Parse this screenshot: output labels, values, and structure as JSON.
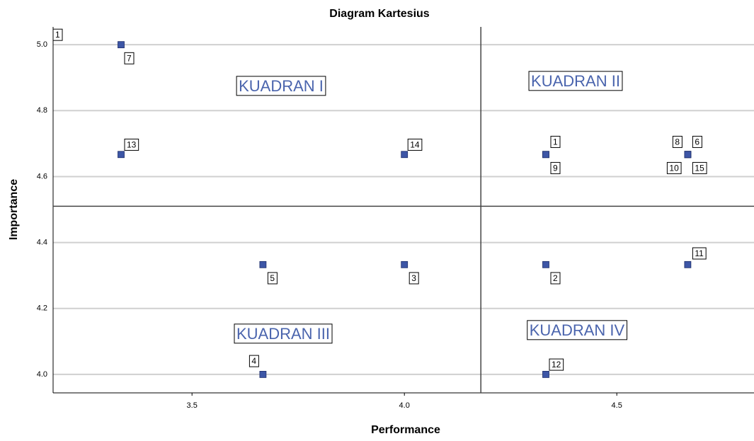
{
  "chart_data": {
    "type": "scatter",
    "title": "Diagram Kartesius",
    "x_label": "Performance",
    "y_label": "Importance",
    "xlim": [
      3.173,
      4.823
    ],
    "ylim": [
      3.944,
      5.054
    ],
    "xticks": [
      3.5,
      {
        "value": 4,
        "label": "4.0"
      },
      4.5
    ],
    "yticks": [
      {
        "value": 4,
        "label": "4.0"
      },
      4.2,
      4.4,
      4.6,
      4.8,
      {
        "value": 5,
        "label": "5.0"
      }
    ],
    "grid": true,
    "x_reference": 4.18,
    "y_reference": 4.51,
    "quadrant_labels": [
      "KUADRAN I",
      "KUADRAN II",
      "KUADRAN III",
      "KUADRAN IV"
    ],
    "stray_label": "1",
    "series": [
      {
        "name": null,
        "color": "#3d56a6",
        "point_labels": [
          "1",
          "2",
          "3",
          "4",
          "5",
          "6",
          "7",
          "8",
          "9",
          "10",
          "11",
          "12",
          "13",
          "14",
          "15"
        ],
        "x": [
          4.333,
          4.333,
          4.0,
          3.667,
          3.667,
          4.667,
          3.333,
          4.667,
          4.333,
          4.667,
          4.667,
          4.333,
          3.333,
          4.0,
          4.667
        ],
        "values": [
          4.667,
          4.333,
          4.333,
          4.0,
          4.333,
          4.667,
          5.0,
          4.667,
          4.667,
          4.667,
          4.333,
          4.0,
          4.667,
          4.667,
          4.667
        ]
      }
    ]
  }
}
